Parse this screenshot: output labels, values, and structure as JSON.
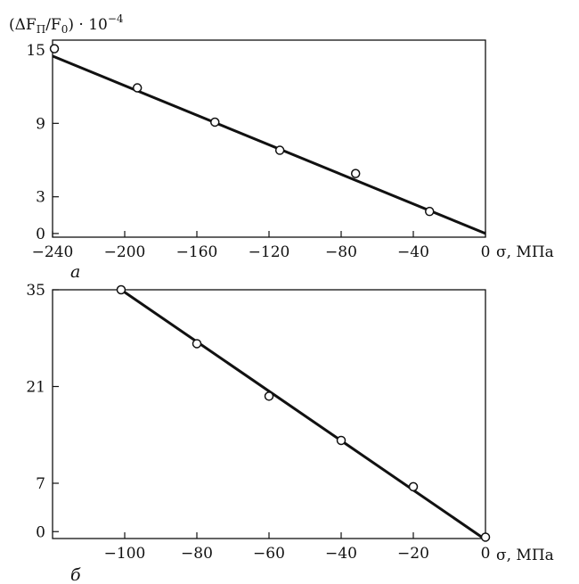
{
  "chart_data": [
    {
      "type": "scatter",
      "panel_label": "а",
      "ylabel": "(ΔF",
      "ylabel_sub": "П",
      "ylabel_mid": "/F",
      "ylabel_sub2": "0",
      "ylabel_tail": ") · 10",
      "ylabel_exp": "−4",
      "xlabel": "σ, МПа",
      "x_ticks": [
        -240,
        -200,
        -160,
        -120,
        -80,
        -40,
        0
      ],
      "x_tick_labels": [
        "−240",
        "−200",
        "−160",
        "−120",
        "−80",
        "−40",
        "0"
      ],
      "y_ticks": [
        0,
        3,
        9,
        15
      ],
      "y_tick_labels": [
        "0",
        "3",
        "9",
        "15"
      ],
      "xlim": [
        -240,
        0
      ],
      "ylim": [
        -0.3,
        15.8
      ],
      "points": [
        {
          "x": -239,
          "y": 15.1
        },
        {
          "x": -193,
          "y": 11.9
        },
        {
          "x": -150,
          "y": 9.1
        },
        {
          "x": -114,
          "y": 6.8
        },
        {
          "x": -72,
          "y": 4.9
        },
        {
          "x": -31,
          "y": 1.8
        }
      ],
      "fit_line": [
        {
          "x": -240,
          "y": 14.5
        },
        {
          "x": 0,
          "y": 0
        }
      ],
      "grid": false
    },
    {
      "type": "scatter",
      "panel_label": "б",
      "xlabel": "σ, МПа",
      "x_ticks": [
        -100,
        -80,
        -60,
        -40,
        -20,
        0
      ],
      "x_tick_labels": [
        "−100",
        "−80",
        "−60",
        "−40",
        "−20",
        "0"
      ],
      "y_ticks": [
        0,
        7,
        21,
        35
      ],
      "y_tick_labels": [
        "0",
        "7",
        "21",
        "35"
      ],
      "xlim": [
        -120,
        0
      ],
      "ylim": [
        -1,
        35
      ],
      "points": [
        {
          "x": -101,
          "y": 35
        },
        {
          "x": -80,
          "y": 27.2
        },
        {
          "x": -60,
          "y": 19.6
        },
        {
          "x": -40,
          "y": 13.2
        },
        {
          "x": -20,
          "y": 6.5
        },
        {
          "x": 0,
          "y": -0.8
        }
      ],
      "fit_line": [
        {
          "x": -101,
          "y": 35
        },
        {
          "x": -1,
          "y": -0.8
        }
      ],
      "grid": false
    }
  ]
}
